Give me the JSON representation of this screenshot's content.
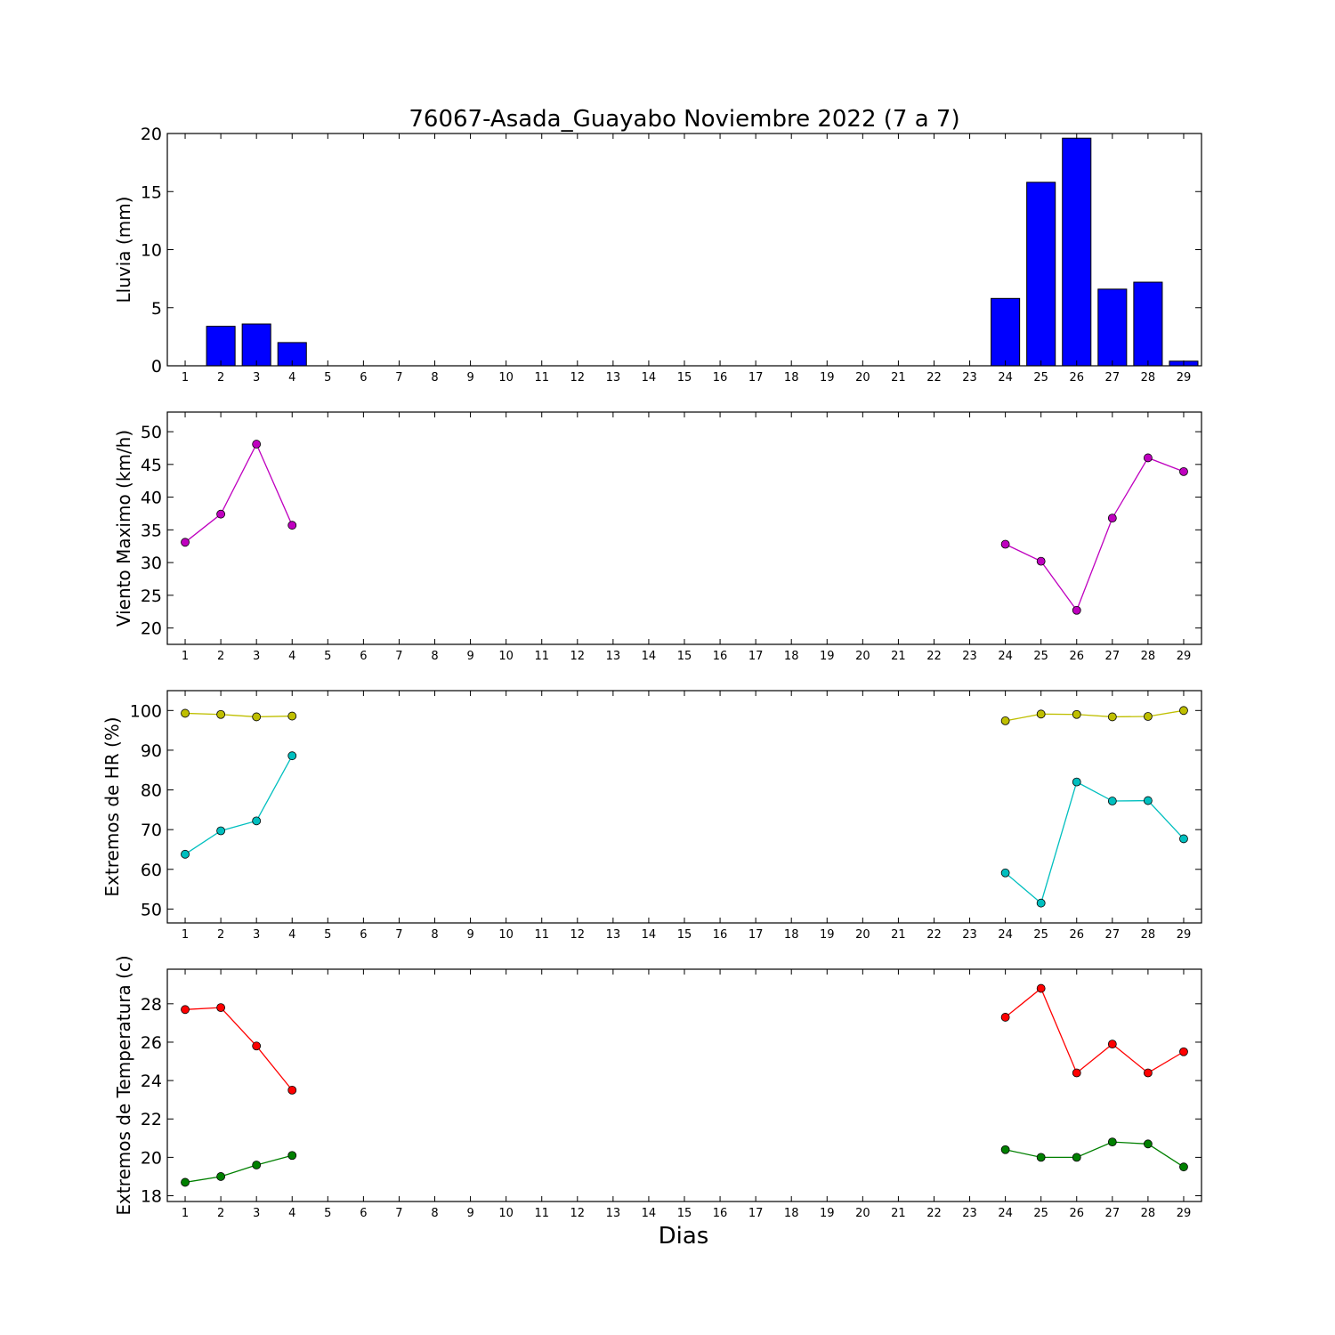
{
  "chart_data": {
    "title": "76067-Asada_Guayabo Noviembre 2022  (7 a 7)",
    "xlabel": "Dias",
    "x": [
      1,
      2,
      3,
      4,
      5,
      6,
      7,
      8,
      9,
      10,
      11,
      12,
      13,
      14,
      15,
      16,
      17,
      18,
      19,
      20,
      21,
      22,
      23,
      24,
      25,
      26,
      27,
      28,
      29
    ],
    "panels": [
      {
        "type": "bar",
        "ylabel": "Lluvia (mm)",
        "ylim": [
          0,
          20
        ],
        "yticks": [
          0,
          5,
          10,
          15,
          20
        ],
        "series": [
          {
            "color": "#0000ff",
            "values": [
              0,
              3.4,
              3.6,
              2.0,
              0,
              0,
              0,
              0,
              0,
              0,
              0,
              0,
              0,
              0,
              0,
              0,
              0,
              0,
              0,
              0,
              0,
              0,
              0,
              5.8,
              15.8,
              19.6,
              6.6,
              7.2,
              0.4
            ]
          }
        ]
      },
      {
        "type": "line",
        "ylabel": "Viento Maximo (km/h)",
        "ylim": [
          17.5,
          53
        ],
        "yticks": [
          20,
          25,
          30,
          35,
          40,
          45,
          50
        ],
        "series": [
          {
            "color": "#bf00bf",
            "values": [
              33.1,
              37.4,
              48.1,
              35.7,
              null,
              null,
              null,
              null,
              null,
              null,
              null,
              null,
              null,
              null,
              null,
              null,
              null,
              null,
              null,
              null,
              null,
              null,
              null,
              32.8,
              30.2,
              22.7,
              36.8,
              46.0,
              43.9
            ]
          }
        ]
      },
      {
        "type": "line",
        "ylabel": "Extremos de HR (%)",
        "ylim": [
          46.5,
          105
        ],
        "yticks": [
          50,
          60,
          70,
          80,
          90,
          100
        ],
        "series": [
          {
            "color": "#bfbf00",
            "values": [
              99.3,
              99.0,
              98.4,
              98.6,
              null,
              null,
              null,
              null,
              null,
              null,
              null,
              null,
              null,
              null,
              null,
              null,
              null,
              null,
              null,
              null,
              null,
              null,
              null,
              97.4,
              99.1,
              99.0,
              98.4,
              98.5,
              100.0
            ]
          },
          {
            "color": "#00bfbf",
            "values": [
              63.8,
              69.7,
              72.2,
              88.6,
              null,
              null,
              null,
              null,
              null,
              null,
              null,
              null,
              null,
              null,
              null,
              null,
              null,
              null,
              null,
              null,
              null,
              null,
              null,
              59.1,
              51.5,
              82.0,
              77.2,
              77.3,
              67.7
            ]
          }
        ]
      },
      {
        "type": "line",
        "ylabel": "Extremos de Temperatura (c)",
        "ylim": [
          17.7,
          29.8
        ],
        "yticks": [
          18,
          20,
          22,
          24,
          26,
          28
        ],
        "series": [
          {
            "color": "#ff0000",
            "values": [
              27.7,
              27.8,
              25.8,
              23.5,
              null,
              null,
              null,
              null,
              null,
              null,
              null,
              null,
              null,
              null,
              null,
              null,
              null,
              null,
              null,
              null,
              null,
              null,
              null,
              27.3,
              28.8,
              24.4,
              25.9,
              24.4,
              25.5
            ]
          },
          {
            "color": "#008000",
            "values": [
              18.7,
              19.0,
              19.6,
              20.1,
              null,
              null,
              null,
              null,
              null,
              null,
              null,
              null,
              null,
              null,
              null,
              null,
              null,
              null,
              null,
              null,
              null,
              null,
              null,
              20.4,
              20.0,
              20.0,
              20.8,
              20.7,
              19.5
            ]
          }
        ]
      }
    ]
  }
}
